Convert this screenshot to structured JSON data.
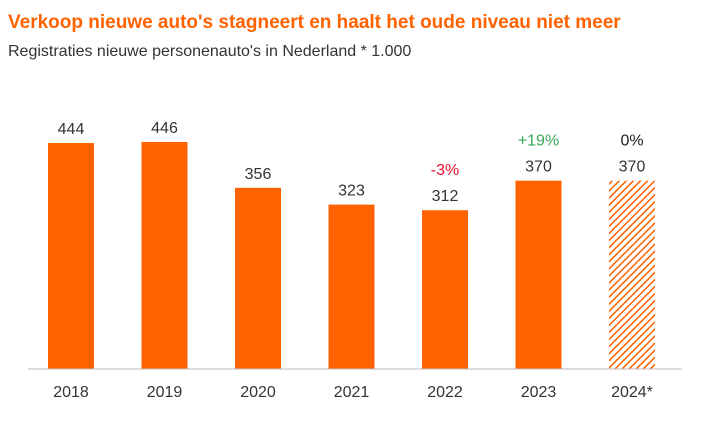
{
  "chart_data": {
    "type": "bar",
    "title": "Verkoop nieuwe auto's stagneert en haalt het oude niveau niet meer",
    "subtitle": "Registraties nieuwe personenauto's in Nederland * 1.000",
    "categories": [
      "2018",
      "2019",
      "2020",
      "2021",
      "2022",
      "2023",
      "2024*"
    ],
    "values": [
      444,
      446,
      356,
      323,
      312,
      370,
      370
    ],
    "value_labels": [
      "444",
      "446",
      "356",
      "323",
      "312",
      "370",
      "370"
    ],
    "forecast": [
      false,
      false,
      false,
      false,
      false,
      false,
      true
    ],
    "annotations": [
      {
        "category": "2022",
        "text": "-3%",
        "color": "#e8102e"
      },
      {
        "category": "2023",
        "text": "+19%",
        "color": "#34a853"
      },
      {
        "category": "2024*",
        "text": "0%",
        "color": "#222222"
      }
    ],
    "ylim": [
      0,
      480
    ],
    "grid": false,
    "bar_color": "#ff6200",
    "forecast_color": "#ff6200"
  }
}
